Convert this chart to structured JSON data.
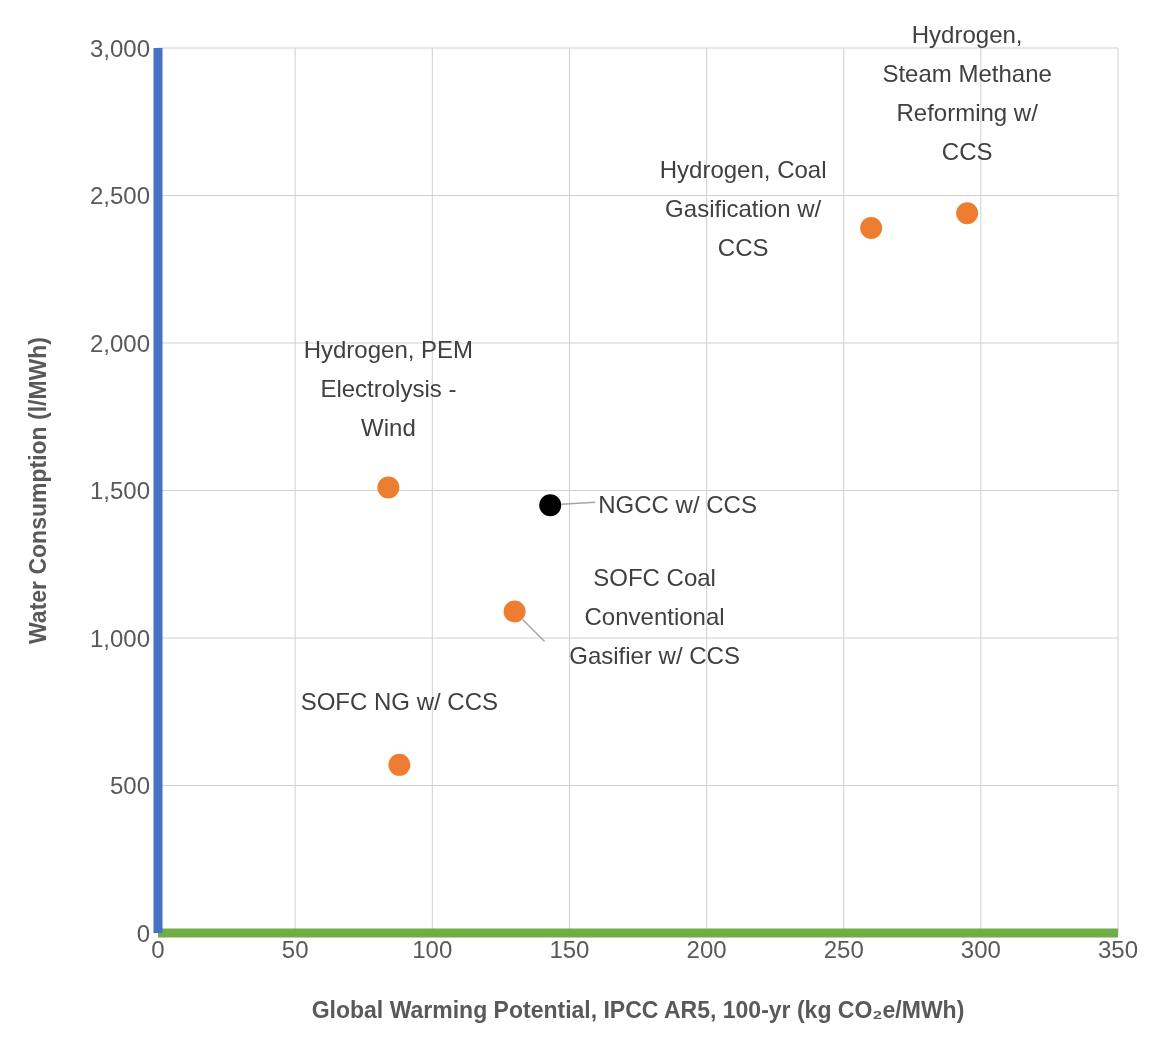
{
  "chart_data": {
    "type": "scatter",
    "xlabel": "Global Warming Potential, IPCC AR5, 100-yr (kg CO₂e/MWh)",
    "ylabel": "Water Consumption (l/MWh)",
    "xlim": [
      0,
      350
    ],
    "xticks": [
      0,
      50,
      100,
      150,
      200,
      250,
      300,
      350
    ],
    "ylim": [
      0,
      3000
    ],
    "yticks": [
      0,
      {
        "value": 500,
        "label": "500"
      },
      {
        "value": 1000,
        "label": "1,000"
      },
      {
        "value": 1500,
        "label": "1,500"
      },
      {
        "value": 2000,
        "label": "2,000"
      },
      {
        "value": 2500,
        "label": "2,500"
      },
      {
        "value": 3000,
        "label": "3,000"
      }
    ],
    "grid": true,
    "legend": false,
    "marker": "circle",
    "series": [
      {
        "color": "#ed7d31",
        "x": [
          84,
          130,
          88,
          260,
          295
        ],
        "values": [
          1510,
          1090,
          570,
          2390,
          2440
        ]
      },
      {
        "color": "#000000",
        "x": [
          143
        ],
        "values": [
          1450
        ]
      }
    ],
    "annotations": [
      {
        "text": "Hydrogen, PEM Electrolysis - Wind",
        "x": 84,
        "y": 1510
      },
      {
        "text": "SOFC Coal Conventional Gasifier w/ CCS",
        "x": 130,
        "y": 1090
      },
      {
        "text": "SOFC NG w/ CCS",
        "x": 88,
        "y": 570
      },
      {
        "text": "Hydrogen, Coal Gasification w/ CCS",
        "x": 260,
        "y": 2390
      },
      {
        "text": "Hydrogen, Steam Methane Reforming w/ CCS",
        "x": 295,
        "y": 2440
      },
      {
        "text": "NGCC w/ CCS",
        "x": 143,
        "y": 1450
      }
    ]
  }
}
